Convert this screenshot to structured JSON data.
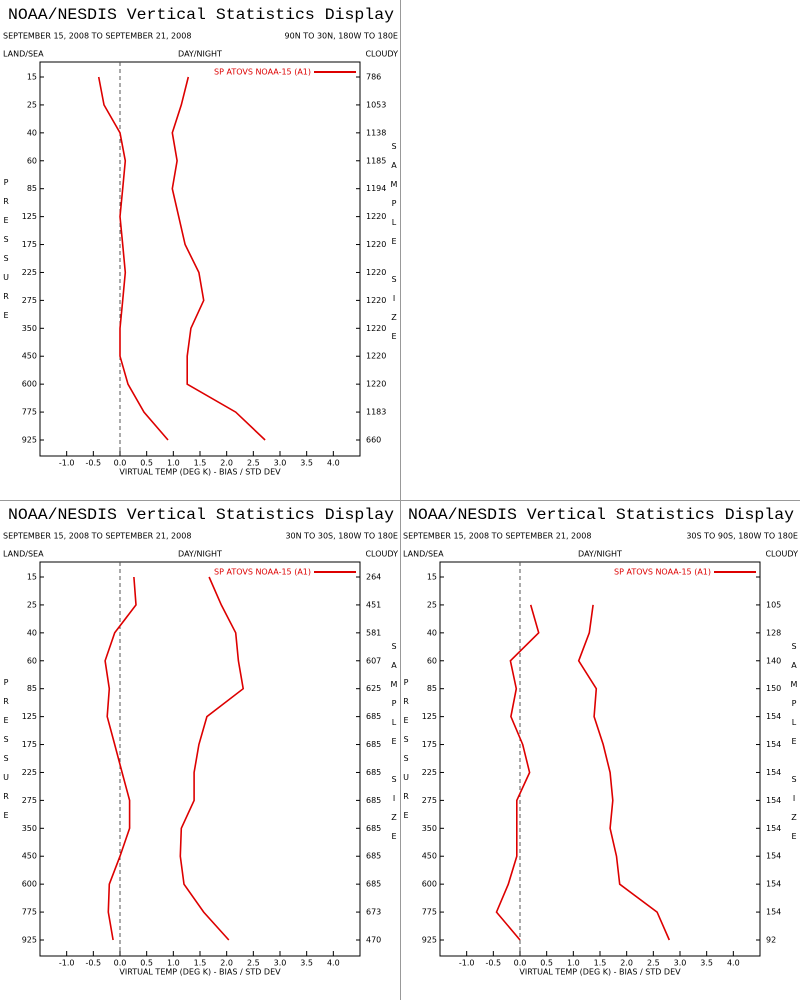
{
  "chart_data": [
    {
      "type": "line",
      "title": "NOAA/NESDIS Vertical Statistics Display",
      "subtitle": "SEPTEMBER 15, 2008 TO SEPTEMBER 21, 2008",
      "region": "90N TO 30N, 180W TO 180E",
      "left_header": "LAND/SEA",
      "center_header": "DAY/NIGHT",
      "right_header": "CLOUDY",
      "y_label": "PRESSURE",
      "y2_label": "SAMPLE SIZE",
      "x_label": "VIRTUAL TEMP (DEG K) - BIAS / STD DEV",
      "legend": "SP ATOVS NOAA-15 (A1)",
      "categories": [
        15,
        25,
        40,
        60,
        85,
        125,
        175,
        225,
        275,
        350,
        450,
        600,
        775,
        925
      ],
      "sample_size": [
        786,
        1053,
        1138,
        1185,
        1194,
        1220,
        1220,
        1220,
        1220,
        1220,
        1220,
        1220,
        1183,
        660
      ],
      "series": [
        {
          "color": "#dd0000",
          "values": [
            -0.4,
            -0.3,
            0.0,
            0.1,
            0.05,
            0.0,
            0.05,
            0.1,
            0.05,
            0.0,
            0.0,
            0.15,
            0.45,
            0.9
          ]
        },
        {
          "color": "#dd0000",
          "values": [
            1.28,
            1.15,
            0.98,
            1.07,
            0.98,
            1.1,
            1.22,
            1.48,
            1.57,
            1.33,
            1.26,
            1.26,
            2.17,
            2.72
          ]
        }
      ],
      "xlim": [
        -1.5,
        4.5
      ],
      "xticks": [
        {
          "value": -1,
          "label": "-1.0"
        },
        -0.5,
        {
          "value": 0,
          "label": "0.0"
        },
        0.5,
        {
          "value": 1,
          "label": "1.0"
        },
        1.5,
        {
          "value": 2,
          "label": "2.0"
        },
        2.5,
        {
          "value": 3,
          "label": "3.0"
        },
        3.5,
        {
          "value": 4,
          "label": "4.0"
        }
      ]
    },
    {
      "type": "line",
      "title": "NOAA/NESDIS Vertical Statistics Display",
      "subtitle": "SEPTEMBER 15, 2008 TO SEPTEMBER 21, 2008",
      "region": "30N TO 30S, 180W TO 180E",
      "left_header": "LAND/SEA",
      "center_header": "DAY/NIGHT",
      "right_header": "CLOUDY",
      "y_label": "PRESSURE",
      "y2_label": "SAMPLE SIZE",
      "x_label": "VIRTUAL TEMP (DEG K) - BIAS / STD DEV",
      "legend": "SP ATOVS NOAA-15 (A1)",
      "categories": [
        15,
        25,
        40,
        60,
        85,
        125,
        175,
        225,
        275,
        350,
        450,
        600,
        775,
        925
      ],
      "sample_size": [
        264,
        451,
        581,
        607,
        625,
        685,
        685,
        685,
        685,
        685,
        685,
        685,
        673,
        470
      ],
      "series": [
        {
          "color": "#dd0000",
          "values": [
            0.26,
            0.3,
            -0.1,
            -0.28,
            -0.2,
            -0.24,
            -0.1,
            0.04,
            0.18,
            0.18,
            0.0,
            -0.2,
            -0.22,
            -0.13
          ]
        },
        {
          "color": "#dd0000",
          "values": [
            1.67,
            1.9,
            2.17,
            2.22,
            2.31,
            1.63,
            1.48,
            1.39,
            1.39,
            1.15,
            1.13,
            1.2,
            1.57,
            2.04
          ]
        }
      ],
      "xlim": [
        -1.5,
        4.5
      ],
      "xticks": [
        {
          "value": -1,
          "label": "-1.0"
        },
        -0.5,
        {
          "value": 0,
          "label": "0.0"
        },
        0.5,
        {
          "value": 1,
          "label": "1.0"
        },
        1.5,
        {
          "value": 2,
          "label": "2.0"
        },
        2.5,
        {
          "value": 3,
          "label": "3.0"
        },
        3.5,
        {
          "value": 4,
          "label": "4.0"
        }
      ]
    },
    {
      "type": "line",
      "title": "NOAA/NESDIS Vertical Statistics Display",
      "subtitle": "SEPTEMBER 15, 2008 TO SEPTEMBER 21, 2008",
      "region": "30S TO 90S, 180W TO 180E",
      "left_header": "LAND/SEA",
      "center_header": "DAY/NIGHT",
      "right_header": "CLOUDY",
      "y_label": "PRESSURE",
      "y2_label": "SAMPLE SIZE",
      "x_label": "VIRTUAL TEMP (DEG K) - BIAS / STD DEV",
      "legend": "SP ATOVS NOAA-15 (A1)",
      "categories": [
        15,
        25,
        40,
        60,
        85,
        125,
        175,
        225,
        275,
        350,
        450,
        600,
        775,
        925
      ],
      "sample_size": [
        null,
        105,
        128,
        140,
        150,
        154,
        154,
        154,
        154,
        154,
        154,
        154,
        154,
        92
      ],
      "series": [
        {
          "color": "#dd0000",
          "values": [
            null,
            0.2,
            0.35,
            -0.18,
            -0.07,
            -0.17,
            0.05,
            0.18,
            -0.06,
            -0.06,
            -0.06,
            -0.22,
            -0.44,
            0.0
          ]
        },
        {
          "color": "#dd0000",
          "values": [
            null,
            1.37,
            1.3,
            1.1,
            1.43,
            1.39,
            1.56,
            1.69,
            1.74,
            1.69,
            1.81,
            1.87,
            2.57,
            2.8
          ]
        }
      ],
      "xlim": [
        -1.5,
        4.5
      ],
      "xticks": [
        {
          "value": -1,
          "label": "-1.0"
        },
        -0.5,
        {
          "value": 0,
          "label": "0.0"
        },
        0.5,
        {
          "value": 1,
          "label": "1.0"
        },
        1.5,
        {
          "value": 2,
          "label": "2.0"
        },
        2.5,
        {
          "value": 3,
          "label": "3.0"
        },
        3.5,
        {
          "value": 4,
          "label": "4.0"
        }
      ]
    }
  ]
}
